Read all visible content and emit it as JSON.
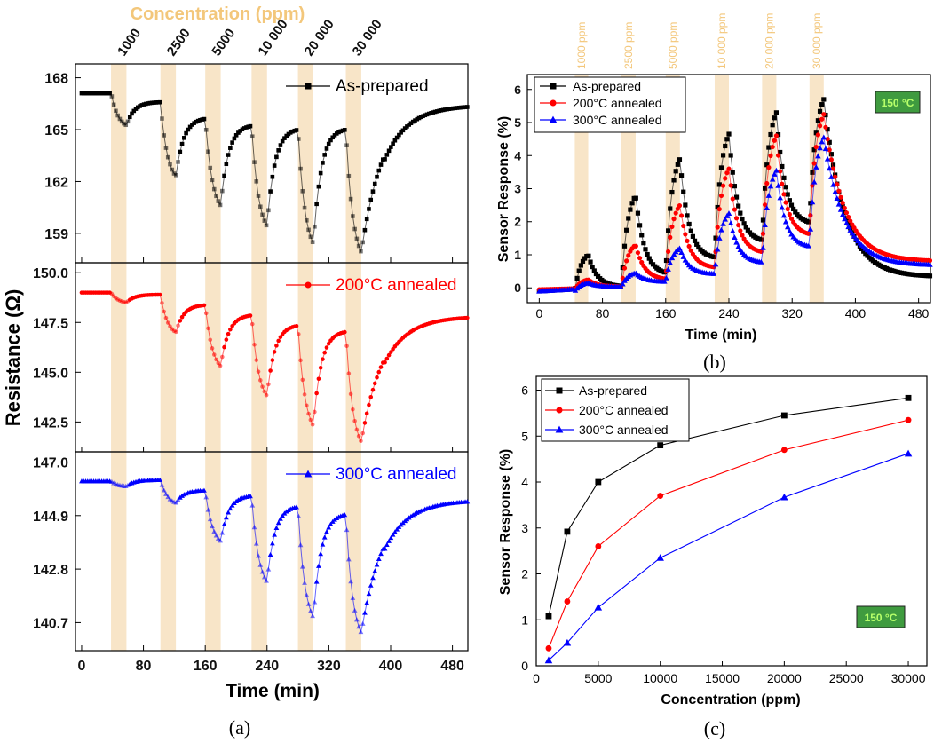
{
  "chart_data": [
    {
      "id": "a",
      "type": "line",
      "panel_label": "(a)",
      "top_label": "Concentration (ppm)",
      "concentration_labels": [
        "1000",
        "2500",
        "5000",
        "10 000",
        "20 000",
        "30 000"
      ],
      "exposure_windows_min": [
        [
          38,
          58
        ],
        [
          102,
          122
        ],
        [
          160,
          180
        ],
        [
          220,
          240
        ],
        [
          280,
          300
        ],
        [
          342,
          362
        ]
      ],
      "xlabel": "Time (min)",
      "ylabel": "Resistance (Ω)",
      "xlim": [
        -8,
        500
      ],
      "xticks": [
        "0",
        "80",
        "160",
        "240",
        "320",
        "400",
        "480"
      ],
      "xtick_values": [
        0,
        80,
        160,
        240,
        320,
        400,
        480
      ],
      "panels": [
        {
          "name": "As-prepared",
          "color": "#000000",
          "marker": "square",
          "ylim": [
            157.3,
            168.8
          ],
          "yticks": [
            "168",
            "165",
            "162",
            "159"
          ],
          "ytick_values": [
            168,
            165,
            162,
            159
          ],
          "baseline": 167.1,
          "recovery_end": 166.4,
          "cycles": [
            [
              167.15,
              165.25,
              166.6
            ],
            [
              166.6,
              162.3,
              165.7
            ],
            [
              165.7,
              160.6,
              165.3
            ],
            [
              165.3,
              159.4,
              165.1
            ],
            [
              165.1,
              158.4,
              165.1
            ],
            [
              165.1,
              157.9,
              166.4
            ]
          ]
        },
        {
          "name": "200°C annealed",
          "color": "#ff0000",
          "marker": "circle",
          "ylim": [
            141.0,
            150.5
          ],
          "yticks": [
            "150.0",
            "147.5",
            "145.0",
            "142.5"
          ],
          "ytick_values": [
            150.0,
            147.5,
            145.0,
            142.5
          ],
          "baseline": 149.0,
          "recovery_end": 147.8,
          "cycles": [
            [
              149.0,
              148.5,
              148.9
            ],
            [
              148.9,
              147.0,
              148.4
            ],
            [
              148.4,
              145.3,
              147.9
            ],
            [
              147.9,
              143.8,
              147.4
            ],
            [
              147.4,
              142.3,
              147.1
            ],
            [
              147.1,
              141.5,
              147.8
            ]
          ]
        },
        {
          "name": "300°C annealed",
          "color": "#0000ff",
          "marker": "triangle",
          "ylim": [
            139.6,
            147.4
          ],
          "yticks": [
            "147.0",
            "144.9",
            "142.8",
            "140.7"
          ],
          "ytick_values": [
            147.0,
            144.9,
            142.8,
            140.7
          ],
          "baseline": 146.25,
          "recovery_end": 145.5,
          "cycles": [
            [
              146.25,
              146.05,
              146.3
            ],
            [
              146.3,
              145.4,
              145.9
            ],
            [
              145.9,
              143.9,
              145.7
            ],
            [
              145.7,
              142.3,
              145.3
            ],
            [
              145.3,
              140.9,
              145.0
            ],
            [
              145.0,
              140.3,
              145.5
            ]
          ]
        }
      ]
    },
    {
      "id": "b",
      "type": "line",
      "panel_label": "(b)",
      "xlabel": "Time (min)",
      "ylabel": "Sensor Response (%)",
      "xlim": [
        -15,
        495
      ],
      "ylim": [
        -0.45,
        6.45
      ],
      "xticks": [
        "0",
        "80",
        "160",
        "240",
        "320",
        "400",
        "480"
      ],
      "xtick_values": [
        0,
        80,
        160,
        240,
        320,
        400,
        480
      ],
      "yticks": [
        "0",
        "1",
        "2",
        "3",
        "4",
        "5",
        "6"
      ],
      "ytick_values": [
        0,
        1,
        2,
        3,
        4,
        5,
        6
      ],
      "band_labels": [
        "1000 ppm",
        "2500 ppm",
        "5000 ppm",
        "10 000 ppm",
        "20 000 ppm",
        "30 000 ppm"
      ],
      "exposure_windows_min": [
        [
          45,
          62
        ],
        [
          104,
          122
        ],
        [
          160,
          178
        ],
        [
          222,
          240
        ],
        [
          282,
          300
        ],
        [
          342,
          360
        ]
      ],
      "annotation": "150 °C",
      "series": [
        {
          "name": "As-prepared",
          "color": "#000000",
          "marker": "square",
          "peaks": [
            1.0,
            2.8,
            3.9,
            4.65,
            5.3,
            5.7
          ],
          "start": -0.1,
          "end": 0.33
        },
        {
          "name": "200°C annealed",
          "color": "#ff0000",
          "marker": "circle",
          "peaks": [
            0.25,
            1.3,
            2.5,
            3.6,
            4.6,
            5.25
          ],
          "start": -0.05,
          "end": 0.8
        },
        {
          "name": "300°C annealed",
          "color": "#0000ff",
          "marker": "triangle",
          "peaks": [
            0.15,
            0.45,
            1.2,
            2.25,
            3.55,
            4.55
          ],
          "start": -0.1,
          "end": 0.68
        }
      ]
    },
    {
      "id": "c",
      "type": "line",
      "panel_label": "(c)",
      "xlabel": "Concentration (ppm)",
      "ylabel": "Sensor Response (%)",
      "xlim": [
        0,
        31500
      ],
      "ylim": [
        0,
        6.3
      ],
      "xticks": [
        "0",
        "5000",
        "10000",
        "15000",
        "20000",
        "25000",
        "30000"
      ],
      "xtick_values": [
        0,
        5000,
        10000,
        15000,
        20000,
        25000,
        30000
      ],
      "yticks": [
        "0",
        "1",
        "2",
        "3",
        "4",
        "5",
        "6"
      ],
      "ytick_values": [
        0,
        1,
        2,
        3,
        4,
        5,
        6
      ],
      "annotation": "150 °C",
      "x": [
        1000,
        2500,
        5000,
        10000,
        20000,
        30000
      ],
      "series": [
        {
          "name": "As-prepared",
          "color": "#000000",
          "marker": "square",
          "values": [
            1.08,
            2.92,
            4.0,
            4.8,
            5.45,
            5.83
          ]
        },
        {
          "name": "200°C annealed",
          "color": "#ff0000",
          "marker": "circle",
          "values": [
            0.38,
            1.4,
            2.6,
            3.7,
            4.7,
            5.35
          ]
        },
        {
          "name": "300°C annealed",
          "color": "#0000ff",
          "marker": "triangle",
          "values": [
            0.12,
            0.5,
            1.27,
            2.35,
            3.67,
            4.62
          ]
        }
      ]
    }
  ]
}
